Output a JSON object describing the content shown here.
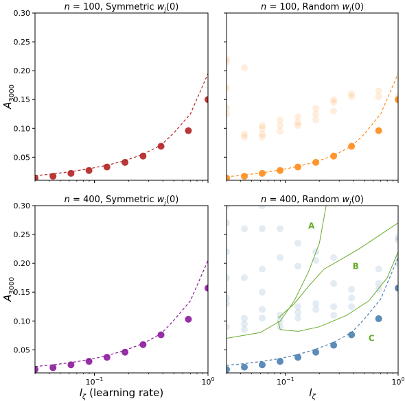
{
  "chart_data": [
    {
      "type": "scatter",
      "panel": "top-left",
      "title": "n = 100, Symmetric w_j(0)",
      "title_parts": {
        "n": "n",
        "eq": " = 100, Symmetric ",
        "w": "w",
        "sub": "j",
        "tail": "(0)"
      },
      "xscale": "log",
      "xlim": [
        0.03,
        1.0
      ],
      "ylim": [
        0.01,
        0.3
      ],
      "ylabel": "A",
      "ylabel_sub": "3000",
      "color": "#b22222",
      "x": [
        0.03,
        0.0432,
        0.0622,
        0.0896,
        0.129,
        0.186,
        0.268,
        0.386,
        0.556,
        0.8,
        1.0
      ],
      "points": [
        0.014,
        0.017,
        0.022,
        0.027,
        0.033,
        0.041,
        0.052,
        0.069,
        0.096,
        0.15
      ],
      "points_x": [
        0.03,
        0.0432,
        0.0622,
        0.0896,
        0.129,
        0.186,
        0.268,
        0.386,
        0.672,
        1.0
      ],
      "dashed": [
        0.018,
        0.021,
        0.025,
        0.03,
        0.036,
        0.044,
        0.055,
        0.071,
        0.092,
        0.125,
        0.195
      ],
      "dashed_x": [
        0.03,
        0.0432,
        0.0622,
        0.0896,
        0.129,
        0.186,
        0.268,
        0.386,
        0.5,
        0.7,
        1.0
      ]
    },
    {
      "type": "scatter",
      "panel": "top-right",
      "title": "n = 100, Random w_j(0)",
      "title_parts": {
        "n": "n",
        "eq": " = 100, Random ",
        "w": "w",
        "sub": "j",
        "tail": "(0)"
      },
      "xscale": "log",
      "xlim": [
        0.03,
        1.0
      ],
      "ylim": [
        0.01,
        0.3
      ],
      "color": "#ff8c1a",
      "points_x": [
        0.03,
        0.0432,
        0.0622,
        0.0896,
        0.129,
        0.186,
        0.268,
        0.386,
        0.672,
        1.0
      ],
      "points": [
        0.014,
        0.017,
        0.022,
        0.027,
        0.033,
        0.041,
        0.052,
        0.069,
        0.096,
        0.15
      ],
      "faint": [
        [
          0.03,
          0.22
        ],
        [
          0.03,
          0.215
        ],
        [
          0.03,
          0.17
        ],
        [
          0.03,
          0.135
        ],
        [
          0.03,
          0.125
        ],
        [
          0.0432,
          0.205
        ],
        [
          0.0432,
          0.09
        ],
        [
          0.0432,
          0.085
        ],
        [
          0.0622,
          0.105
        ],
        [
          0.0622,
          0.1
        ],
        [
          0.0622,
          0.09
        ],
        [
          0.0622,
          0.085
        ],
        [
          0.0896,
          0.115
        ],
        [
          0.0896,
          0.105
        ],
        [
          0.0896,
          0.095
        ],
        [
          0.129,
          0.12
        ],
        [
          0.129,
          0.11
        ],
        [
          0.129,
          0.105
        ],
        [
          0.186,
          0.135
        ],
        [
          0.186,
          0.125
        ],
        [
          0.186,
          0.115
        ],
        [
          0.268,
          0.15
        ],
        [
          0.268,
          0.145
        ],
        [
          0.268,
          0.13
        ],
        [
          0.386,
          0.16
        ],
        [
          0.386,
          0.155
        ],
        [
          0.672,
          0.165
        ],
        [
          0.672,
          0.155
        ],
        [
          1.0,
          0.155
        ],
        [
          1.0,
          0.148
        ]
      ],
      "dashed": [
        0.016,
        0.019,
        0.023,
        0.028,
        0.034,
        0.042,
        0.053,
        0.069,
        0.09,
        0.125,
        0.195
      ],
      "dashed_x": [
        0.03,
        0.0432,
        0.0622,
        0.0896,
        0.129,
        0.186,
        0.268,
        0.386,
        0.5,
        0.7,
        1.0
      ]
    },
    {
      "type": "scatter",
      "panel": "bottom-left",
      "title": "n = 400, Symmetric w_j(0)",
      "title_parts": {
        "n": "n",
        "eq": " = 400, Symmetric ",
        "w": "w",
        "sub": "j",
        "tail": "(0)"
      },
      "xscale": "log",
      "xlim": [
        0.03,
        1.0
      ],
      "ylim": [
        0.01,
        0.3
      ],
      "ylabel": "A",
      "ylabel_sub": "3000",
      "xlabel": "l",
      "xlabel_sub": "ζ",
      "xlabel_tail": " (learning rate)",
      "color": "#8b1a9b",
      "points_x": [
        0.03,
        0.0432,
        0.0622,
        0.0896,
        0.129,
        0.186,
        0.268,
        0.386,
        0.672,
        1.0
      ],
      "points": [
        0.016,
        0.019,
        0.024,
        0.03,
        0.037,
        0.046,
        0.059,
        0.076,
        0.103,
        0.157
      ],
      "dashed": [
        0.021,
        0.024,
        0.028,
        0.033,
        0.04,
        0.049,
        0.061,
        0.078,
        0.101,
        0.135,
        0.205
      ],
      "dashed_x": [
        0.03,
        0.0432,
        0.0622,
        0.0896,
        0.129,
        0.186,
        0.268,
        0.386,
        0.5,
        0.7,
        1.0
      ]
    },
    {
      "type": "scatter",
      "panel": "bottom-right",
      "title": "n = 400, Random w_j(0)",
      "title_parts": {
        "n": "n",
        "eq": " = 400, Random ",
        "w": "w",
        "sub": "j",
        "tail": "(0)"
      },
      "xscale": "log",
      "xlim": [
        0.03,
        1.0
      ],
      "ylim": [
        0.01,
        0.3
      ],
      "xlabel": "l",
      "xlabel_sub": "ζ",
      "color": "#4a7fb0",
      "points_x": [
        0.03,
        0.0432,
        0.0622,
        0.0896,
        0.129,
        0.186,
        0.268,
        0.386,
        0.672,
        1.0
      ],
      "points": [
        0.016,
        0.02,
        0.024,
        0.03,
        0.037,
        0.046,
        0.058,
        0.076,
        0.104,
        0.157
      ],
      "faint": [
        [
          0.03,
          0.3
        ],
        [
          0.03,
          0.27
        ],
        [
          0.03,
          0.22
        ],
        [
          0.03,
          0.175
        ],
        [
          0.03,
          0.14
        ],
        [
          0.03,
          0.13
        ],
        [
          0.03,
          0.09
        ],
        [
          0.0432,
          0.26
        ],
        [
          0.0432,
          0.175
        ],
        [
          0.0432,
          0.105
        ],
        [
          0.0432,
          0.095
        ],
        [
          0.0432,
          0.085
        ],
        [
          0.0622,
          0.3
        ],
        [
          0.0622,
          0.26
        ],
        [
          0.0622,
          0.19
        ],
        [
          0.0622,
          0.15
        ],
        [
          0.0622,
          0.12
        ],
        [
          0.0622,
          0.105
        ],
        [
          0.0896,
          0.26
        ],
        [
          0.0896,
          0.21
        ],
        [
          0.0896,
          0.11
        ],
        [
          0.0896,
          0.1
        ],
        [
          0.0896,
          0.09
        ],
        [
          0.129,
          0.235
        ],
        [
          0.129,
          0.195
        ],
        [
          0.129,
          0.125
        ],
        [
          0.129,
          0.115
        ],
        [
          0.129,
          0.105
        ],
        [
          0.186,
          0.22
        ],
        [
          0.186,
          0.205
        ],
        [
          0.186,
          0.13
        ],
        [
          0.186,
          0.12
        ],
        [
          0.268,
          0.21
        ],
        [
          0.268,
          0.165
        ],
        [
          0.268,
          0.125
        ],
        [
          0.268,
          0.11
        ],
        [
          0.386,
          0.155
        ],
        [
          0.386,
          0.14
        ],
        [
          0.386,
          0.125
        ],
        [
          0.672,
          0.19
        ],
        [
          0.672,
          0.165
        ],
        [
          0.672,
          0.155
        ],
        [
          1.0,
          0.245
        ],
        [
          1.0,
          0.24
        ],
        [
          1.0,
          0.21
        ],
        [
          1.0,
          0.2
        ]
      ],
      "dashed": [
        0.023,
        0.026,
        0.03,
        0.035,
        0.042,
        0.051,
        0.063,
        0.08,
        0.103,
        0.138,
        0.21
      ],
      "dashed_x": [
        0.03,
        0.0432,
        0.0622,
        0.0896,
        0.129,
        0.186,
        0.268,
        0.386,
        0.5,
        0.7,
        1.0
      ],
      "boundaries": [
        {
          "x": [
            0.03,
            0.06,
            0.09,
            0.12,
            0.16,
            0.2,
            0.22,
            0.23
          ],
          "y": [
            0.07,
            0.08,
            0.1,
            0.135,
            0.185,
            0.235,
            0.28,
            0.3
          ]
        },
        {
          "x": [
            0.086,
            0.12,
            0.16,
            0.22,
            0.3,
            0.45,
            0.7,
            1.0
          ],
          "y": [
            0.105,
            0.13,
            0.16,
            0.19,
            0.205,
            0.225,
            0.25,
            0.27
          ]
        },
        {
          "x": [
            0.086,
            0.09,
            0.13,
            0.2,
            0.35,
            0.55,
            0.8,
            1.0
          ],
          "y": [
            0.1,
            0.085,
            0.082,
            0.09,
            0.11,
            0.135,
            0.175,
            0.22
          ]
        }
      ],
      "region_color": "#6aaa2a",
      "regions": [
        {
          "label": "A",
          "x": 0.17,
          "y": 0.26
        },
        {
          "label": "B",
          "x": 0.42,
          "y": 0.19
        },
        {
          "label": "C",
          "x": 0.58,
          "y": 0.065
        }
      ]
    }
  ],
  "yticks": [
    "0.05",
    "0.10",
    "0.15",
    "0.20",
    "0.25",
    "0.30"
  ],
  "ytick_values": [
    0.05,
    0.1,
    0.15,
    0.2,
    0.25,
    0.3
  ],
  "xticks": [
    {
      "base": "10",
      "exp": "−1",
      "value": 0.1
    },
    {
      "base": "10",
      "exp": "0",
      "value": 1.0
    }
  ]
}
